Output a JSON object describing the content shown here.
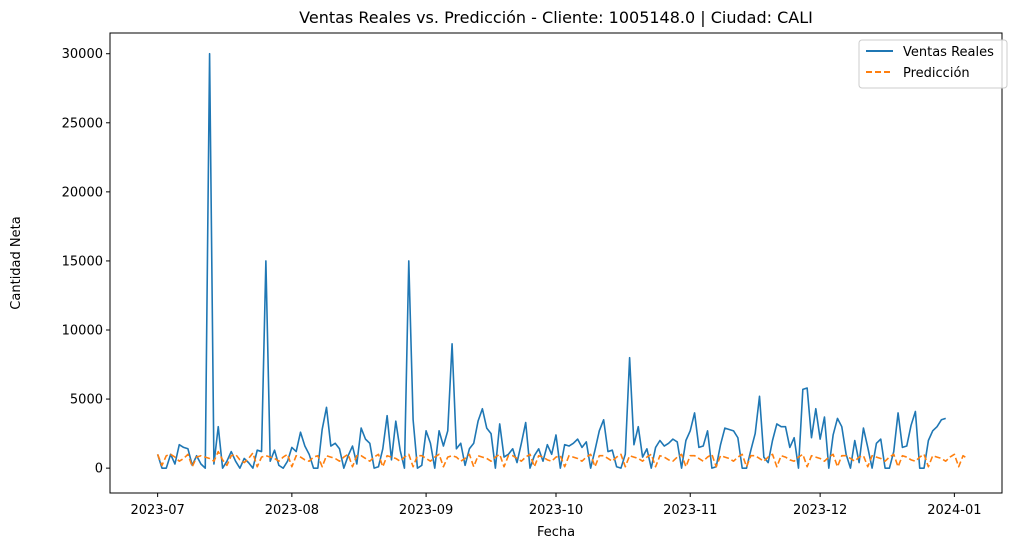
{
  "chart_data": {
    "type": "line",
    "title": "Ventas Reales vs. Predicción - Cliente: 1005148.0 | Ciudad: CALI",
    "xlabel": "Fecha",
    "ylabel": "Cantidad Neta",
    "x_start": "2023-07-01",
    "x_end": "2023-12-31",
    "xlim": [
      "2023-06-20",
      "2024-01-12"
    ],
    "ylim": [
      -1800,
      31500
    ],
    "x_ticks": [
      "2023-07-01",
      "2023-08-01",
      "2023-09-01",
      "2023-10-01",
      "2023-11-01",
      "2023-12-01",
      "2024-01-01"
    ],
    "x_tick_labels": [
      "2023-07",
      "2023-08",
      "2023-09",
      "2023-10",
      "2023-11",
      "2023-12",
      "2024-01"
    ],
    "y_ticks": [
      0,
      5000,
      10000,
      15000,
      20000,
      25000,
      30000
    ],
    "y_tick_labels": [
      "0",
      "5000",
      "10000",
      "15000",
      "20000",
      "25000",
      "30000"
    ],
    "grid": false,
    "legend_position": "top-right",
    "series": [
      {
        "name": "Ventas Reales",
        "color": "#1f77b4",
        "style": "solid",
        "values": [
          1000,
          0,
          0,
          1000,
          300,
          1700,
          1500,
          1400,
          200,
          900,
          300,
          0,
          30000,
          300,
          3000,
          0,
          500,
          1200,
          500,
          0,
          700,
          400,
          0,
          1300,
          1200,
          15000,
          500,
          1300,
          200,
          0,
          500,
          1500,
          1200,
          2600,
          1600,
          1000,
          0,
          0,
          2800,
          4400,
          1600,
          1800,
          1400,
          0,
          900,
          1600,
          300,
          2900,
          2100,
          1800,
          0,
          100,
          1400,
          3800,
          600,
          3400,
          1300,
          0,
          15000,
          3500,
          0,
          200,
          2700,
          1800,
          0,
          2700,
          1600,
          2700,
          9000,
          1400,
          1800,
          200,
          1400,
          1800,
          3400,
          4300,
          2900,
          2500,
          0,
          3200,
          800,
          1000,
          1400,
          400,
          1800,
          3300,
          0,
          900,
          1400,
          500,
          1700,
          1000,
          2400,
          0,
          1700,
          1600,
          1800,
          2100,
          1500,
          1900,
          0,
          1300,
          2700,
          3500,
          1200,
          1300,
          100,
          0,
          1000,
          8000,
          1700,
          3000,
          800,
          1400,
          0,
          1500,
          2000,
          1600,
          1800,
          2100,
          1900,
          0,
          2000,
          2700,
          4000,
          1500,
          1600,
          2700,
          0,
          100,
          1700,
          2900,
          2800,
          2700,
          2200,
          0,
          0,
          1300,
          2500,
          5200,
          800,
          400,
          2000,
          3200,
          3000,
          3000,
          1500,
          2200,
          0,
          5700,
          5800,
          2200,
          4300,
          2100,
          3700,
          0,
          2400,
          3600,
          3000,
          1000,
          0,
          2000,
          400,
          2900,
          1500,
          0,
          1800,
          2100,
          0,
          0,
          1200,
          4000,
          1500,
          1600,
          3100,
          4100,
          0,
          0,
          2000,
          2700,
          3000,
          3500,
          3600
        ]
      },
      {
        "name": "Predicción",
        "color": "#ff7f0e",
        "style": "dashed",
        "values": [
          1000,
          200,
          900,
          1000,
          800,
          500,
          700,
          1000,
          100,
          800,
          900,
          800,
          700,
          500,
          1200,
          600,
          200,
          900,
          1000,
          600,
          400,
          700,
          1100,
          100,
          800,
          900,
          800,
          700,
          500,
          800,
          1000,
          100,
          900,
          800,
          600,
          500,
          800,
          900,
          100,
          900,
          800,
          700,
          500,
          800,
          1000,
          100,
          900,
          900,
          700,
          500,
          800,
          1000,
          100,
          900,
          800,
          700,
          500,
          800,
          1000,
          100,
          900,
          900,
          700,
          500,
          800,
          1000,
          100,
          800,
          900,
          800,
          500,
          700,
          1000,
          100,
          900,
          800,
          700,
          500,
          800,
          1000,
          100,
          900,
          900,
          700,
          500,
          800,
          1000,
          100,
          900,
          800,
          600,
          500,
          800,
          900,
          100,
          900,
          800,
          700,
          500,
          800,
          1000,
          100,
          900,
          900,
          700,
          500,
          800,
          1000,
          100,
          900,
          800,
          700,
          500,
          800,
          1000,
          100,
          900,
          800,
          600,
          500,
          800,
          1000,
          100,
          900,
          900,
          700,
          500,
          800,
          1000,
          100,
          900,
          800,
          700,
          500,
          800,
          1000,
          100,
          900,
          900,
          700,
          500,
          800,
          1000,
          100,
          900,
          800,
          600,
          500,
          800,
          1000,
          100,
          900,
          800,
          700,
          500,
          800,
          1000,
          100,
          900,
          900,
          700,
          500,
          800,
          900,
          100,
          900,
          800,
          700,
          500,
          800,
          1000,
          100,
          900,
          800,
          600,
          500,
          800,
          1000,
          100,
          900,
          800,
          700,
          500,
          800,
          1000,
          100,
          900,
          700
        ]
      }
    ]
  }
}
